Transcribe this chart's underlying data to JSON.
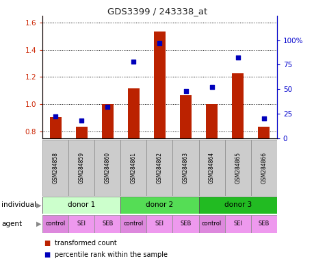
{
  "title": "GDS3399 / 243338_at",
  "samples": [
    "GSM284858",
    "GSM284859",
    "GSM284860",
    "GSM284861",
    "GSM284862",
    "GSM284863",
    "GSM284864",
    "GSM284865",
    "GSM284866"
  ],
  "bar_values": [
    0.905,
    0.835,
    1.0,
    1.115,
    1.535,
    1.065,
    1.0,
    1.225,
    0.835
  ],
  "dot_values": [
    22,
    18,
    32,
    78,
    97,
    48,
    52,
    82,
    20
  ],
  "ylim_left": [
    0.75,
    1.65
  ],
  "ylim_right": [
    0,
    125
  ],
  "yticks_left": [
    0.8,
    1.0,
    1.2,
    1.4,
    1.6
  ],
  "yticks_right": [
    0,
    25,
    50,
    75,
    100
  ],
  "ytick_labels_right": [
    "0",
    "25",
    "50",
    "75",
    "100%"
  ],
  "bar_color": "#bb2200",
  "dot_color": "#0000bb",
  "bar_bottom": 0.75,
  "individual_labels": [
    "donor 1",
    "donor 2",
    "donor 3"
  ],
  "individual_colors": [
    "#ccffcc",
    "#55dd55",
    "#22bb22"
  ],
  "agent_labels": [
    "control",
    "SEI",
    "SEB",
    "control",
    "SEI",
    "SEB",
    "control",
    "SEI",
    "SEB"
  ],
  "agent_bg_control": "#dd88dd",
  "agent_bg_sei_seb": "#ee99ee",
  "legend_bar_label": "transformed count",
  "legend_dot_label": "percentile rank within the sample",
  "grid_color": "#000000",
  "background_color": "#ffffff",
  "tick_label_color_left": "#cc2200",
  "tick_label_color_right": "#0000cc",
  "sample_bg": "#cccccc",
  "sample_border": "#888888"
}
